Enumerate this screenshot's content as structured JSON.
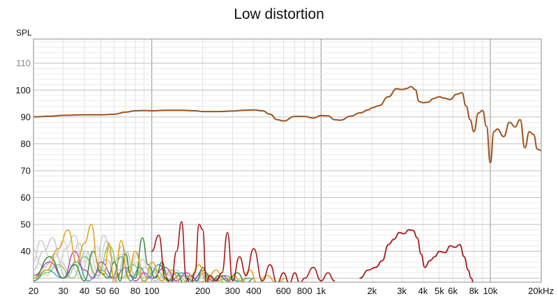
{
  "chart_data": {
    "type": "line",
    "title": "Low distortion",
    "ylabel": "SPL",
    "xlabel": "",
    "x_scale": "log",
    "xlim": [
      20,
      20000
    ],
    "ylim": [
      28.5,
      119
    ],
    "grid": true,
    "y_ticks": [
      {
        "value": 110,
        "label": "110"
      },
      {
        "value": 100,
        "label": "100"
      },
      {
        "value": 90,
        "label": "90"
      },
      {
        "value": 80,
        "label": "80"
      },
      {
        "value": 70,
        "label": "70"
      },
      {
        "value": 60,
        "label": "60"
      },
      {
        "value": 50,
        "label": "50"
      },
      {
        "value": 40,
        "label": "40"
      }
    ],
    "x_ticks": [
      {
        "value": 20,
        "label": "20"
      },
      {
        "value": 30,
        "label": "30"
      },
      {
        "value": 40,
        "label": "40"
      },
      {
        "value": 50,
        "label": "50"
      },
      {
        "value": 60,
        "label": "60"
      },
      {
        "value": 80,
        "label": "80"
      },
      {
        "value": 100,
        "label": "100"
      },
      {
        "value": 200,
        "label": "200"
      },
      {
        "value": 300,
        "label": "300"
      },
      {
        "value": 400,
        "label": "400"
      },
      {
        "value": 600,
        "label": "600"
      },
      {
        "value": 800,
        "label": "800"
      },
      {
        "value": 1000,
        "label": "1k"
      },
      {
        "value": 2000,
        "label": "2k"
      },
      {
        "value": 3000,
        "label": "3k"
      },
      {
        "value": 4000,
        "label": "4k"
      },
      {
        "value": 5000,
        "label": "5k"
      },
      {
        "value": 6000,
        "label": "6k"
      },
      {
        "value": 8000,
        "label": "8k"
      },
      {
        "value": 10000,
        "label": "10k"
      },
      {
        "value": 20000,
        "label": "20kHz"
      }
    ],
    "series": [
      {
        "color": "#a0521d",
        "width": 2,
        "x": [
          20,
          25,
          30,
          40,
          50,
          60,
          70,
          80,
          90,
          100,
          120,
          150,
          180,
          200,
          250,
          300,
          350,
          400,
          450,
          500,
          550,
          600,
          700,
          800,
          900,
          1000,
          1100,
          1200,
          1300,
          1500,
          1700,
          1900,
          2000,
          2200,
          2500,
          2800,
          3000,
          3200,
          3400,
          3600,
          3800,
          4000,
          4300,
          4600,
          5000,
          5300,
          5800,
          6300,
          6800,
          7200,
          7600,
          8000,
          8500,
          9000,
          9500,
          10000,
          10500,
          11000,
          12000,
          13000,
          14000,
          15000,
          16000,
          17000,
          18000,
          19000,
          20000
        ],
        "y": [
          90,
          90.3,
          90.6,
          90.8,
          90.8,
          91,
          91.8,
          92.3,
          92.4,
          92.3,
          92.5,
          92.5,
          92.3,
          92,
          92,
          92.2,
          92.5,
          92.6,
          92.3,
          91,
          89,
          88.5,
          90.2,
          90.2,
          89.6,
          90.5,
          90.4,
          89,
          88.8,
          90.3,
          91.5,
          92.6,
          93.4,
          94.2,
          97.5,
          100.5,
          100.2,
          100.6,
          101.3,
          100.2,
          95.7,
          95.3,
          95.5,
          96.8,
          97.5,
          97,
          96.5,
          98.4,
          99,
          94,
          89,
          84.5,
          91.4,
          92.4,
          86.5,
          73,
          84.5,
          85.5,
          82.7,
          88,
          86.3,
          89,
          78.5,
          84.5,
          83.5,
          78,
          77.5
        ]
      },
      {
        "color": "#a81818",
        "width": 1.8,
        "x": [
          1700,
          1900,
          2100,
          2300,
          2500,
          2700,
          2900,
          3100,
          3300,
          3500,
          3700,
          3900,
          4100,
          4400,
          4700,
          5000,
          5400,
          5800,
          6200,
          6600,
          7000,
          7400,
          7700,
          8000
        ],
        "y": [
          30,
          33,
          34,
          36.5,
          42.5,
          44.5,
          47,
          46.5,
          48,
          47.8,
          45,
          39,
          34,
          36.5,
          38,
          40,
          39.5,
          42,
          41.5,
          42.5,
          38,
          33,
          30,
          28
        ]
      },
      {
        "color": "#a81818",
        "width": 1.6,
        "x": [
          100,
          110,
          120,
          130,
          140,
          150,
          160,
          170,
          180,
          190,
          200,
          210,
          220,
          240,
          260,
          280,
          300,
          330,
          360,
          400,
          450,
          500,
          550,
          600,
          650,
          700,
          750,
          800,
          900,
          1000,
          1100,
          1200
        ],
        "y": [
          40,
          46,
          30,
          28,
          40,
          51,
          30,
          28,
          32,
          50,
          48,
          28,
          31,
          29,
          32,
          47,
          29,
          38,
          31,
          41,
          29,
          35,
          28,
          32,
          28,
          32,
          28,
          30,
          34,
          29,
          32,
          29
        ]
      },
      {
        "color": "#e0a81e",
        "width": 1.6,
        "x": [
          20,
          24,
          28,
          32,
          36,
          40,
          44,
          48,
          52,
          56,
          60,
          66,
          72,
          80,
          90,
          100,
          115,
          130,
          150,
          170,
          190,
          210,
          240,
          270,
          300,
          340,
          380,
          420,
          480,
          550,
          620
        ],
        "y": [
          30,
          33,
          41,
          48,
          36,
          43,
          50,
          35,
          31,
          43,
          28,
          44,
          30,
          40,
          28,
          36,
          29,
          33,
          28,
          31,
          35,
          29,
          33,
          28,
          31,
          29,
          33,
          28,
          31,
          28,
          30
        ]
      },
      {
        "color": "#3c8a3c",
        "width": 1.5,
        "x": [
          20,
          25,
          30,
          35,
          40,
          45,
          50,
          55,
          60,
          65,
          70,
          75,
          80,
          88,
          95,
          105,
          115,
          125,
          140,
          155,
          170,
          185,
          200,
          220,
          250,
          280,
          320,
          360,
          400
        ],
        "y": [
          30,
          38,
          30,
          35,
          29,
          40,
          32,
          30,
          36,
          29,
          39,
          31,
          30,
          45,
          35,
          30,
          36,
          29,
          32,
          28,
          31,
          29,
          34,
          28,
          31,
          29,
          32,
          28,
          30
        ]
      },
      {
        "color": "#c03cc0",
        "width": 1.4,
        "x": [
          20,
          25,
          30,
          35,
          40,
          45,
          50,
          60,
          70,
          80,
          90,
          100,
          120,
          140,
          160,
          180,
          200,
          230,
          260,
          300
        ],
        "y": [
          31,
          36,
          30,
          40,
          33,
          30,
          36,
          30,
          34,
          29,
          32,
          30,
          34,
          29,
          32,
          30,
          33,
          29,
          31,
          28
        ]
      },
      {
        "color": "#2a9fb0",
        "width": 1.3,
        "x": [
          20,
          24,
          30,
          36,
          42,
          50,
          58,
          66,
          75,
          85,
          95,
          110,
          130,
          150,
          175,
          200,
          230,
          270,
          320,
          380
        ],
        "y": [
          29,
          33,
          30,
          36,
          29,
          33,
          30,
          38,
          29,
          34,
          30,
          35,
          29,
          32,
          29,
          33,
          29,
          31,
          29,
          30
        ]
      },
      {
        "color": "#7bc850",
        "width": 1.3,
        "x": [
          20,
          24,
          28,
          34,
          40,
          48,
          56,
          66,
          78,
          90,
          105,
          125,
          150,
          175,
          205,
          240,
          290,
          350
        ],
        "y": [
          29,
          32,
          35,
          30,
          38,
          31,
          42,
          30,
          35,
          29,
          33,
          29,
          31,
          28,
          32,
          29,
          30,
          28
        ]
      },
      {
        "color": "#cfcfcf",
        "width": 1.5,
        "x": [
          20,
          22,
          25,
          28,
          31,
          35,
          39,
          43,
          48,
          54,
          60,
          67,
          74,
          82,
          90,
          100,
          112,
          125,
          140,
          160,
          180,
          205,
          235,
          270,
          310,
          360
        ],
        "y": [
          36,
          44,
          38,
          34,
          41,
          46,
          36,
          40,
          32,
          44,
          36,
          42,
          34,
          39,
          30,
          34,
          30,
          33,
          29,
          31,
          29,
          31,
          28,
          30,
          28,
          29
        ]
      },
      {
        "color": "#c8c8c8",
        "width": 1.5,
        "x": [
          20,
          23,
          26,
          29,
          33,
          37,
          41,
          46,
          52,
          58,
          64,
          71,
          79,
          88,
          98,
          110,
          124,
          140,
          158,
          178,
          200,
          230,
          265
        ],
        "y": [
          33,
          40,
          45,
          36,
          32,
          43,
          38,
          31,
          46,
          38,
          33,
          40,
          31,
          37,
          32,
          35,
          29,
          33,
          29,
          31,
          28,
          30,
          28
        ]
      },
      {
        "color": "#d4d4d4",
        "width": 1.5,
        "x": [
          20,
          22,
          24,
          27,
          30,
          34,
          38,
          42,
          47,
          53,
          59,
          66,
          73,
          81,
          90,
          100,
          112,
          126,
          142,
          160,
          180
        ],
        "y": [
          41,
          35,
          31,
          38,
          44,
          34,
          30,
          37,
          42,
          33,
          30,
          39,
          32,
          36,
          29,
          33,
          29,
          31,
          28,
          30,
          28
        ]
      },
      {
        "color": "#bdbdbd",
        "width": 1.4,
        "x": [
          20,
          23,
          27,
          31,
          36,
          41,
          47,
          54,
          62,
          70,
          80,
          92,
          105,
          120,
          138,
          158,
          182,
          210,
          245
        ],
        "y": [
          29,
          34,
          39,
          30,
          35,
          40,
          30,
          37,
          29,
          40,
          31,
          34,
          29,
          32,
          29,
          31,
          28,
          29,
          28
        ]
      }
    ]
  }
}
